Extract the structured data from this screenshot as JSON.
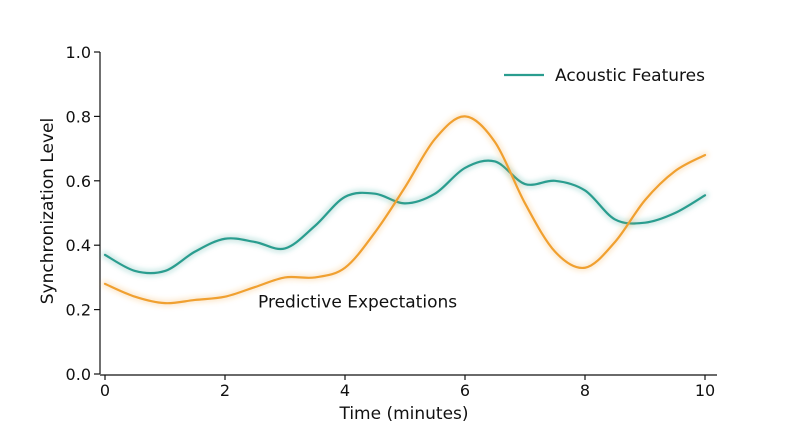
{
  "chart_data": {
    "type": "line",
    "title": "",
    "xlabel": "Time (minutes)",
    "ylabel": "Synchronization Level",
    "xlim": [
      0,
      10
    ],
    "ylim": [
      0,
      1
    ],
    "xticks": [
      0,
      2,
      4,
      6,
      8,
      10
    ],
    "yticks": [
      0.0,
      0.2,
      0.4,
      0.6,
      0.8,
      1.0
    ],
    "xtick_labels": [
      "0",
      "2",
      "4",
      "6",
      "8",
      "10"
    ],
    "ytick_labels": [
      "0.0",
      "0.2",
      "0.4",
      "0.6",
      "0.8",
      "1.0"
    ],
    "grid": false,
    "legend_position": "top-right",
    "series": [
      {
        "name": "Acoustic Features",
        "color": "#2a9d8f",
        "in_legend": true,
        "x": [
          0,
          0.5,
          1,
          1.5,
          2,
          2.5,
          3,
          3.5,
          4,
          4.5,
          5,
          5.5,
          6,
          6.5,
          7,
          7.5,
          8,
          8.5,
          9,
          9.5,
          10
        ],
        "y": [
          0.37,
          0.32,
          0.32,
          0.38,
          0.42,
          0.41,
          0.39,
          0.46,
          0.55,
          0.56,
          0.53,
          0.56,
          0.64,
          0.66,
          0.59,
          0.6,
          0.57,
          0.48,
          0.47,
          0.5,
          0.555
        ]
      },
      {
        "name": "Predictive Expectations",
        "color": "#f0a030",
        "in_legend": false,
        "x": [
          0,
          0.5,
          1,
          1.5,
          2,
          2.5,
          3,
          3.5,
          4,
          4.5,
          5,
          5.5,
          6,
          6.5,
          7,
          7.5,
          8,
          8.5,
          9,
          9.5,
          10
        ],
        "y": [
          0.28,
          0.24,
          0.22,
          0.23,
          0.24,
          0.27,
          0.3,
          0.3,
          0.33,
          0.44,
          0.58,
          0.73,
          0.8,
          0.72,
          0.53,
          0.38,
          0.33,
          0.41,
          0.54,
          0.63,
          0.68
        ]
      }
    ],
    "annotations": [
      {
        "text": "Predictive Expectations",
        "x": 2.55,
        "y": 0.225
      }
    ]
  }
}
